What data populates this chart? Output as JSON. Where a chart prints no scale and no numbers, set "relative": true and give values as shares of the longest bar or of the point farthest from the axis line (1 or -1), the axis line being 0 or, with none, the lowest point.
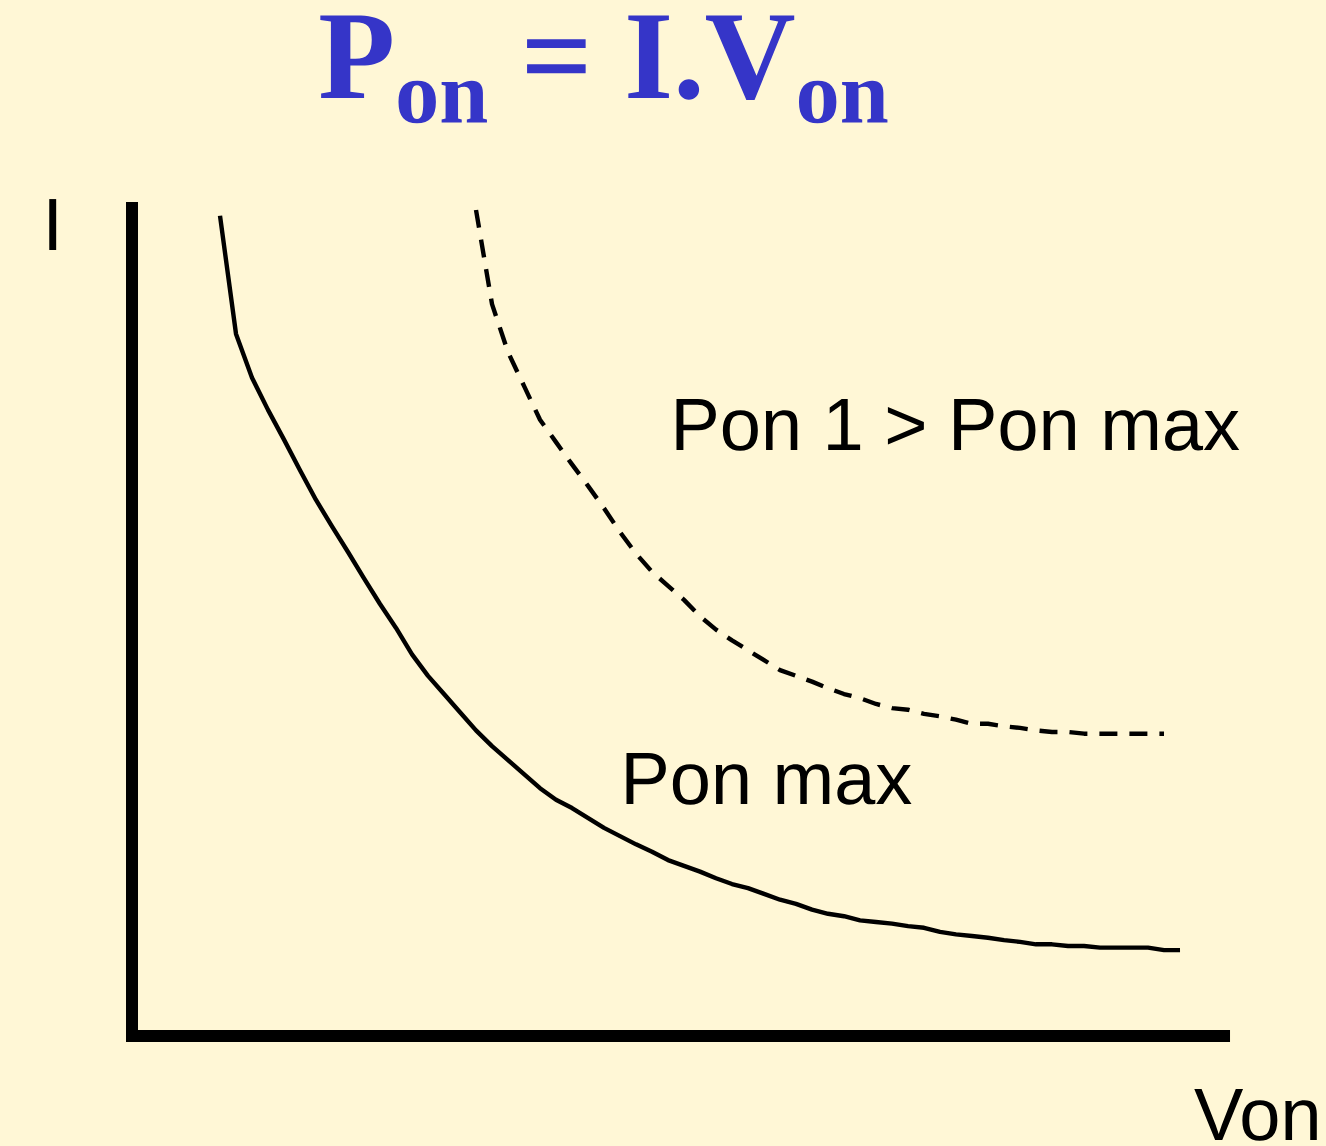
{
  "chart_data": {
    "type": "line",
    "title": "P$_{on}$ = I.V$_{on}$",
    "xlabel": "Von",
    "ylabel": "I",
    "relative": true,
    "categories": [
      null,
      null,
      null,
      null,
      null,
      null,
      null,
      null,
      null,
      null,
      null,
      null,
      null,
      null,
      null,
      null,
      null,
      null,
      null,
      null,
      null,
      null,
      null,
      null,
      null,
      null,
      null,
      null,
      null,
      null,
      null,
      null,
      null,
      null,
      null,
      null,
      null,
      null,
      null,
      null,
      null,
      null,
      null,
      null,
      null,
      null,
      null,
      null,
      null,
      null,
      null,
      null,
      null,
      null,
      null,
      null,
      null,
      null,
      null,
      null,
      null
    ],
    "series": [
      {
        "name": "Pon max",
        "color": "#000000",
        "line_style": "solid",
        "values": [
          0.993,
          0.85,
          0.797,
          0.758,
          0.722,
          0.685,
          0.649,
          0.617,
          0.586,
          0.554,
          0.523,
          0.494,
          0.462,
          0.436,
          0.414,
          0.392,
          0.37,
          0.351,
          0.334,
          0.317,
          0.3,
          0.286,
          0.276,
          0.264,
          0.252,
          0.242,
          0.232,
          0.223,
          0.213,
          0.206,
          0.199,
          0.191,
          0.184,
          0.179,
          0.172,
          0.165,
          0.16,
          0.153,
          0.148,
          0.145,
          0.14,
          0.138,
          0.136,
          0.133,
          0.131,
          0.126,
          0.123,
          0.121,
          0.119,
          0.116,
          0.114,
          0.111,
          0.111,
          0.109,
          0.109,
          0.107,
          0.107,
          0.107,
          0.107,
          0.104,
          0.104
        ]
      },
      {
        "name": "Pon 1 > Pon max",
        "color": "#000000",
        "line_style": "dashed",
        "values": [
          null,
          null,
          null,
          null,
          null,
          null,
          null,
          null,
          null,
          null,
          null,
          null,
          null,
          null,
          null,
          null,
          1,
          0.886,
          0.828,
          0.787,
          0.746,
          0.719,
          0.692,
          0.666,
          0.639,
          0.61,
          0.584,
          0.562,
          0.545,
          0.528,
          0.508,
          0.492,
          0.479,
          0.467,
          0.455,
          0.443,
          0.436,
          0.429,
          0.421,
          0.414,
          0.409,
          0.402,
          0.397,
          0.395,
          0.39,
          0.387,
          0.383,
          0.378,
          0.378,
          0.375,
          0.373,
          0.37,
          0.368,
          0.368,
          0.366,
          0.366,
          0.366,
          0.366,
          0.366,
          0.366,
          null
        ]
      }
    ]
  }
}
